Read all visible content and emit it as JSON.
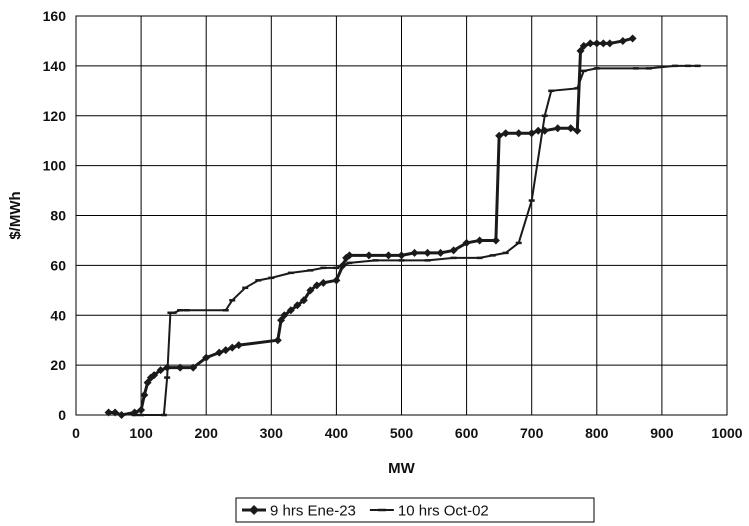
{
  "chart_data": {
    "type": "line",
    "title": "",
    "xlabel": "MW",
    "ylabel": "$/MWh",
    "xlim": [
      0,
      1000
    ],
    "ylim": [
      0,
      160
    ],
    "xticks": [
      0,
      100,
      200,
      300,
      400,
      500,
      600,
      700,
      800,
      900,
      1000
    ],
    "yticks": [
      0,
      20,
      40,
      60,
      80,
      100,
      120,
      140,
      160
    ],
    "xtick_labels": [
      "0",
      "100",
      "200",
      "300",
      "400",
      "500",
      "600",
      "700",
      "800",
      "900",
      "1000"
    ],
    "ytick_labels": [
      "0",
      "20",
      "40",
      "60",
      "80",
      "100",
      "120",
      "140",
      "160"
    ],
    "grid": true,
    "legend_position": "bottom",
    "series": [
      {
        "name": "9 hrs Ene-23",
        "marker": "diamond",
        "color": "#1a1a1a",
        "x": [
          50,
          60,
          70,
          90,
          100,
          105,
          110,
          115,
          120,
          130,
          140,
          160,
          180,
          200,
          220,
          230,
          240,
          250,
          310,
          315,
          320,
          330,
          340,
          350,
          360,
          370,
          380,
          400,
          410,
          415,
          420,
          450,
          480,
          500,
          520,
          540,
          560,
          580,
          600,
          620,
          645,
          650,
          660,
          680,
          700,
          710,
          720,
          740,
          760,
          770,
          775,
          780,
          790,
          800,
          810,
          820,
          840,
          855
        ],
        "y": [
          1,
          1,
          0,
          1,
          2,
          8,
          13,
          15,
          16,
          18,
          19,
          19,
          19,
          23,
          25,
          26,
          27,
          28,
          30,
          38,
          40,
          42,
          44,
          46,
          50,
          52,
          53,
          54,
          60,
          63,
          64,
          64,
          64,
          64,
          65,
          65,
          65,
          66,
          69,
          70,
          70,
          112,
          113,
          113,
          113,
          114,
          114,
          115,
          115,
          114,
          146,
          148,
          149,
          149,
          149,
          149,
          150,
          151
        ]
      },
      {
        "name": "10 hrs Oct-02",
        "marker": "dash",
        "color": "#1a1a1a",
        "x": [
          90,
          100,
          135,
          140,
          145,
          150,
          160,
          170,
          230,
          240,
          260,
          280,
          300,
          330,
          360,
          380,
          400,
          420,
          460,
          500,
          540,
          580,
          620,
          640,
          660,
          680,
          700,
          720,
          730,
          770,
          780,
          800,
          860,
          880,
          920,
          940,
          955
        ],
        "y": [
          0,
          0,
          0,
          15,
          41,
          41,
          42,
          42,
          42,
          46,
          51,
          54,
          55,
          57,
          58,
          59,
          59,
          61,
          62,
          62,
          62,
          63,
          63,
          64,
          65,
          69,
          86,
          120,
          130,
          131,
          138,
          139,
          139,
          139,
          140,
          140,
          140
        ]
      }
    ]
  }
}
